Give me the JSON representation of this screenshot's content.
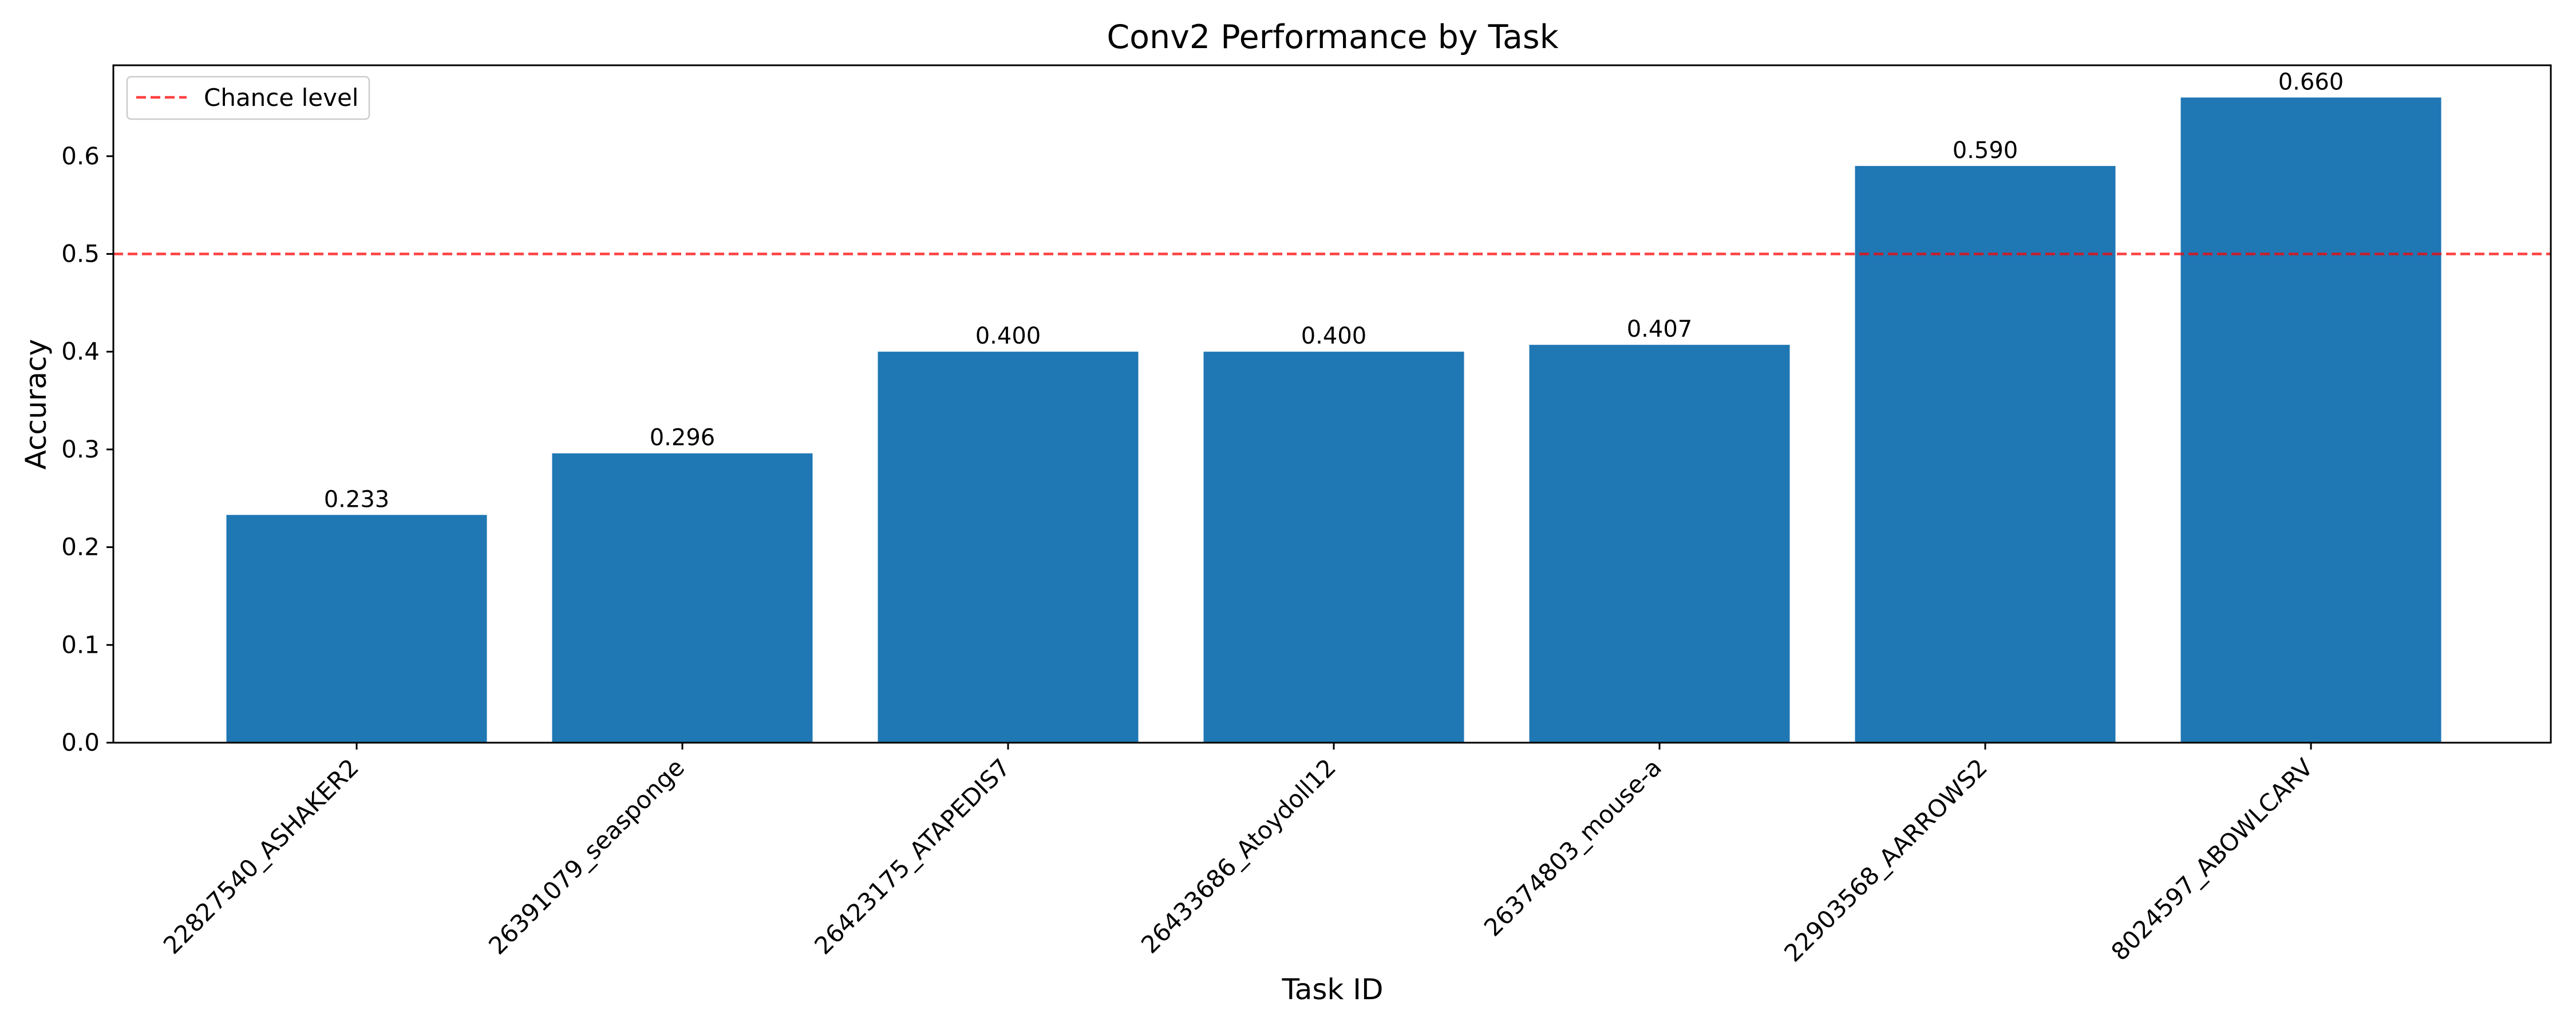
{
  "chart_data": {
    "type": "bar",
    "title": "Conv2 Performance by Task",
    "xlabel": "Task ID",
    "ylabel": "Accuracy",
    "categories": [
      "22827540_ASHAKER2",
      "26391079_seasponge",
      "26423175_ATAPEDIS7",
      "26433686_Atoydoll12",
      "26374803_mouse-a",
      "22903568_AARROWS2",
      "8024597_ABOWLCARV"
    ],
    "values": [
      0.233,
      0.296,
      0.4,
      0.4,
      0.407,
      0.59,
      0.66
    ],
    "value_labels": [
      "0.233",
      "0.296",
      "0.400",
      "0.400",
      "0.407",
      "0.590",
      "0.660"
    ],
    "ylim": [
      0,
      0.693
    ],
    "yticks": [
      0.0,
      0.1,
      0.2,
      0.3,
      0.4,
      0.5,
      0.6
    ],
    "ytick_labels": [
      "0.0",
      "0.1",
      "0.2",
      "0.3",
      "0.4",
      "0.5",
      "0.6"
    ],
    "reference_line": {
      "y": 0.5,
      "label": "Chance level",
      "color": "#ff0000",
      "style": "dashed"
    },
    "bar_color": "#1f77b4",
    "grid": false,
    "legend": {
      "placement": "top-left",
      "entries": [
        "Chance level"
      ]
    }
  }
}
